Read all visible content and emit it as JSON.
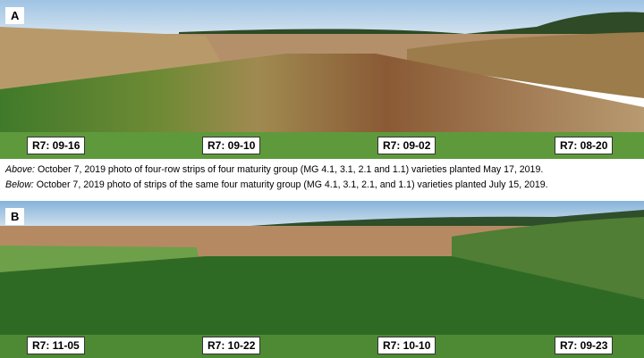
{
  "panels": [
    {
      "letter": "A",
      "labels": [
        "R7: 09-16",
        "R7: 09-10",
        "R7: 09-02",
        "R7: 08-20"
      ]
    },
    {
      "letter": "B",
      "labels": [
        "R7: 11-05",
        "R7: 10-22",
        "R7: 10-10",
        "R7: 09-23"
      ]
    }
  ],
  "caption": [
    {
      "lead": "Above:",
      "text": "October 7, 2019 photo of four-row strips of four maturity group (MG 4.1, 3.1, 2.1 and 1.1) varieties planted May 17, 2019."
    },
    {
      "lead": "Below:",
      "text": "October 7, 2019 photo of strips of the same four maturity group (MG 4.1, 3.1, 2.1, and 1.1) varieties planted July 15, 2019."
    }
  ]
}
